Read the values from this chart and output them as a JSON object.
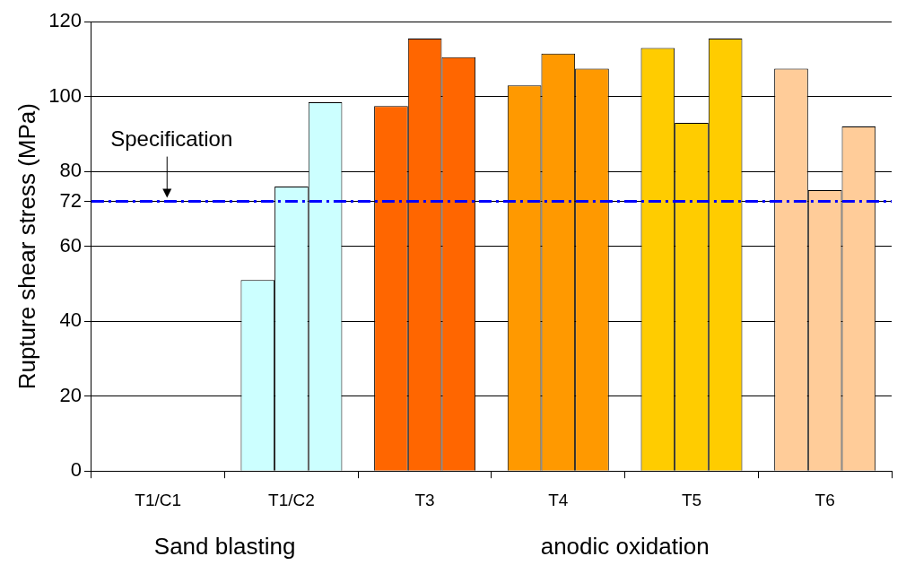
{
  "chart_data": {
    "type": "bar",
    "ylabel": "Rupture shear stress (MPa)",
    "categories": [
      "T1/C1",
      "T1/C2",
      "T3",
      "T4",
      "T5",
      "T6"
    ],
    "series": [
      {
        "colors": [
          "#ccffff",
          "#ccffff",
          "#ff6600",
          "#ff9900",
          "#ffcc00",
          "#ffcc99"
        ],
        "values": [
          null,
          51,
          97.5,
          103,
          113,
          107.5
        ]
      },
      {
        "colors": [
          "#ccffff",
          "#ccffff",
          "#ff6600",
          "#ff9900",
          "#ffcc00",
          "#ffcc99"
        ],
        "values": [
          null,
          76,
          115.5,
          111.5,
          93,
          75
        ]
      },
      {
        "colors": [
          "#ccffff",
          "#ccffff",
          "#ff6600",
          "#ff9900",
          "#ffcc00",
          "#ffcc99"
        ],
        "values": [
          null,
          98.5,
          110.5,
          107.5,
          115.5,
          92
        ]
      }
    ],
    "ylim": [
      0,
      120
    ],
    "yticks": [
      0,
      20,
      40,
      60,
      72,
      80,
      100,
      120
    ],
    "grid": "y",
    "legend": false,
    "ref_lines": [
      {
        "axis": "y",
        "value": 72,
        "label": "Specification",
        "color": "#0000ff",
        "line_style": "dashed"
      }
    ],
    "annotations": [
      "Sand blasting",
      "anodic oxidation"
    ]
  }
}
